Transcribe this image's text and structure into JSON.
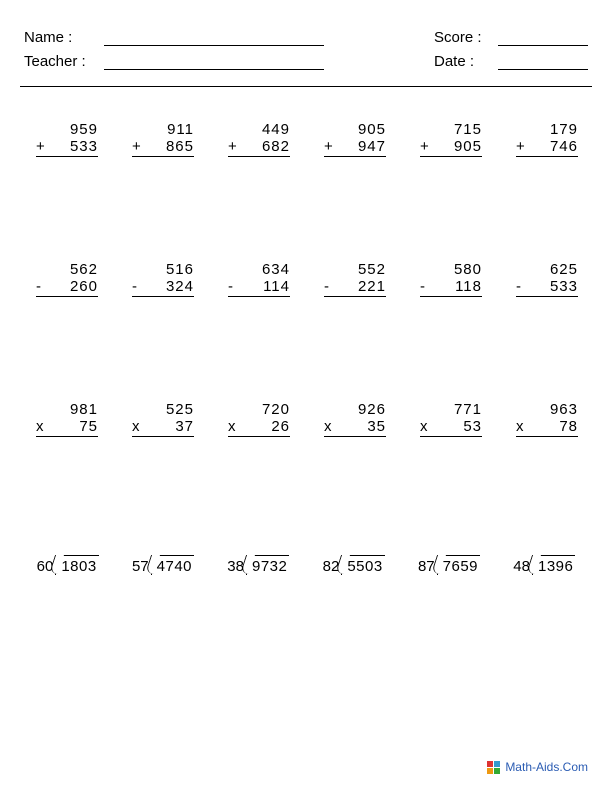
{
  "header": {
    "name_label": "Name :",
    "teacher_label": "Teacher :",
    "score_label": "Score :",
    "date_label": "Date :"
  },
  "rows": [
    {
      "op": "+",
      "problems": [
        {
          "a": "959",
          "b": "533"
        },
        {
          "a": "911",
          "b": "865"
        },
        {
          "a": "449",
          "b": "682"
        },
        {
          "a": "905",
          "b": "947"
        },
        {
          "a": "715",
          "b": "905"
        },
        {
          "a": "179",
          "b": "746"
        }
      ]
    },
    {
      "op": "-",
      "problems": [
        {
          "a": "562",
          "b": "260"
        },
        {
          "a": "516",
          "b": "324"
        },
        {
          "a": "634",
          "b": "114"
        },
        {
          "a": "552",
          "b": "221"
        },
        {
          "a": "580",
          "b": "118"
        },
        {
          "a": "625",
          "b": "533"
        }
      ]
    },
    {
      "op": "x",
      "problems": [
        {
          "a": "981",
          "b": "75"
        },
        {
          "a": "525",
          "b": "37"
        },
        {
          "a": "720",
          "b": "26"
        },
        {
          "a": "926",
          "b": "35"
        },
        {
          "a": "771",
          "b": "53"
        },
        {
          "a": "963",
          "b": "78"
        }
      ]
    }
  ],
  "division": [
    {
      "divisor": "60",
      "dividend": "1803"
    },
    {
      "divisor": "57",
      "dividend": "4740"
    },
    {
      "divisor": "38",
      "dividend": "9732"
    },
    {
      "divisor": "82",
      "dividend": "5503"
    },
    {
      "divisor": "87",
      "dividend": "7659"
    },
    {
      "divisor": "48",
      "dividend": "1396"
    }
  ],
  "footer": {
    "text": "Math-Aids.Com",
    "colors": [
      "#d33",
      "#39c",
      "#e91",
      "#3a3"
    ]
  }
}
